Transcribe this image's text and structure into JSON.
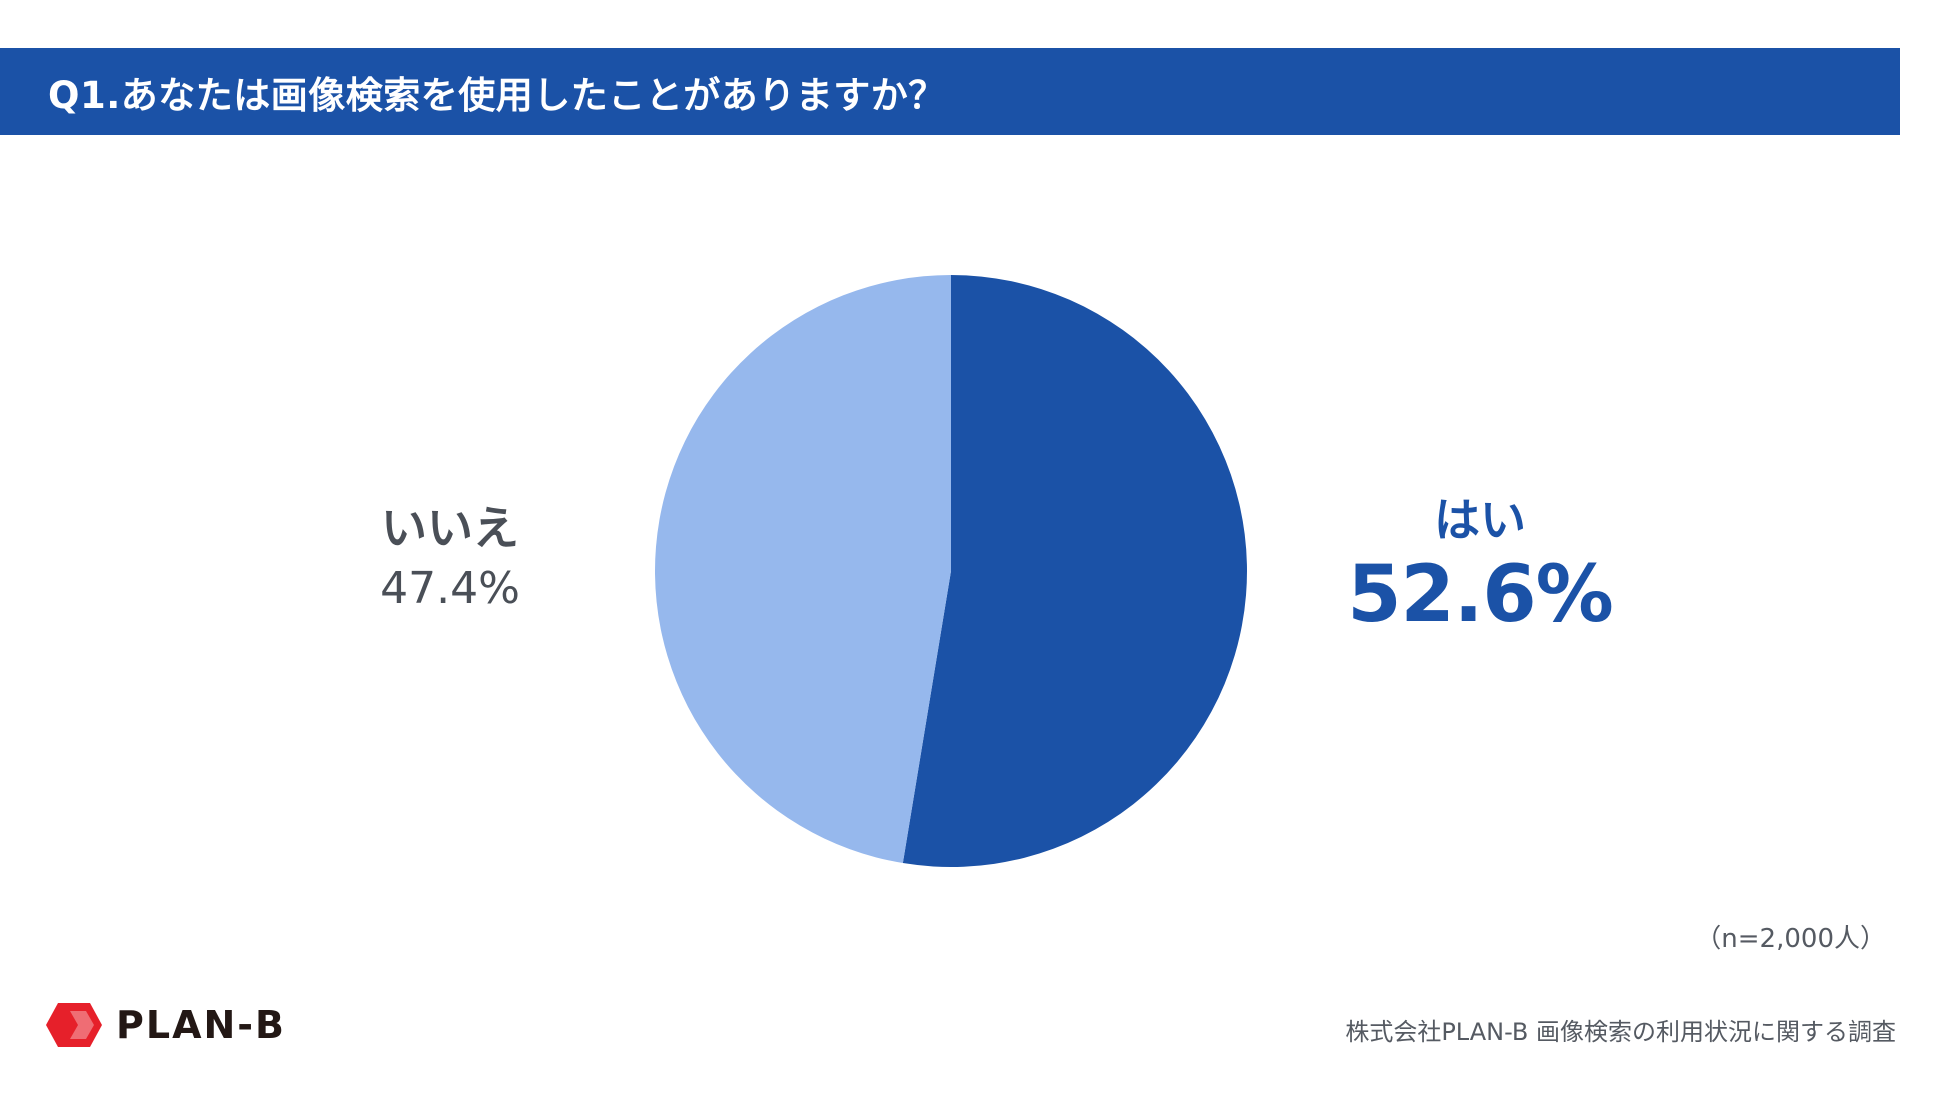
{
  "title": "Q1.あなたは画像検索を使用したことがありますか？",
  "chart_data": {
    "type": "pie",
    "slices": [
      {
        "label": "はい",
        "value": 52.6,
        "display": "52.6%",
        "color": "#1b52a7"
      },
      {
        "label": "いいえ",
        "value": 47.4,
        "display": "47.4%",
        "color": "#96b8ed"
      }
    ],
    "start": "12 o'clock",
    "direction": "clockwise"
  },
  "sample_note": "（n=2,000人）",
  "logo": {
    "text": "PLAN-B",
    "mark_color": "#e6202a"
  },
  "source": "株式会社PLAN-B  画像検索の利用状況に関する調査",
  "colors": {
    "accent": "#1b52a7",
    "light": "#96b8ed"
  }
}
